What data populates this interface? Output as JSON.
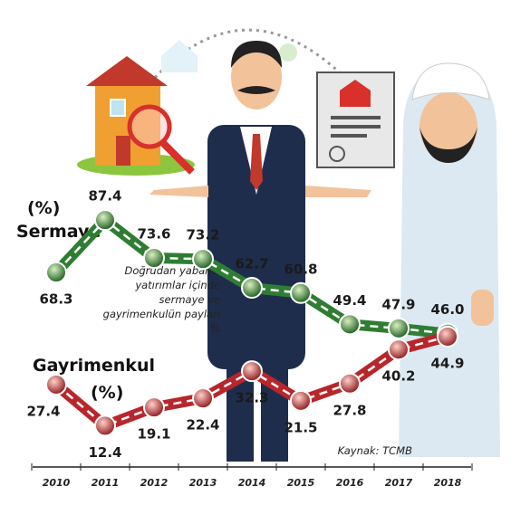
{
  "chart_data": {
    "type": "line",
    "categories": [
      "2010",
      "2011",
      "2012",
      "2013",
      "2014",
      "2015",
      "2016",
      "2017",
      "2018"
    ],
    "unit_label": "(%)",
    "annotation": [
      "Doğrudan yabancı",
      "yatırımlar içinde",
      "sermaye ve",
      "gayrimenkulün payları",
      "%"
    ],
    "source": "Kaynak: TCMB",
    "ylim": [
      0,
      100
    ],
    "series": [
      {
        "name": "Sermaye",
        "color": "#2f7d32",
        "values": [
          68.3,
          87.4,
          73.6,
          73.2,
          62.7,
          60.8,
          49.4,
          47.9,
          46.0
        ],
        "value_labels": [
          "68.3",
          "87.4",
          "73.6",
          "73.2",
          "62.7",
          "60.8",
          "49.4",
          "47.9",
          "46.0"
        ]
      },
      {
        "name": "Gayrimenkul",
        "color": "#b8262b",
        "values": [
          27.4,
          12.4,
          19.1,
          22.4,
          32.3,
          21.5,
          27.8,
          40.2,
          44.9
        ],
        "value_labels": [
          "27.4",
          "12.4",
          "19.1",
          "22.4",
          "32.3",
          "21.5",
          "27.8",
          "40.2",
          "44.9"
        ]
      }
    ]
  }
}
